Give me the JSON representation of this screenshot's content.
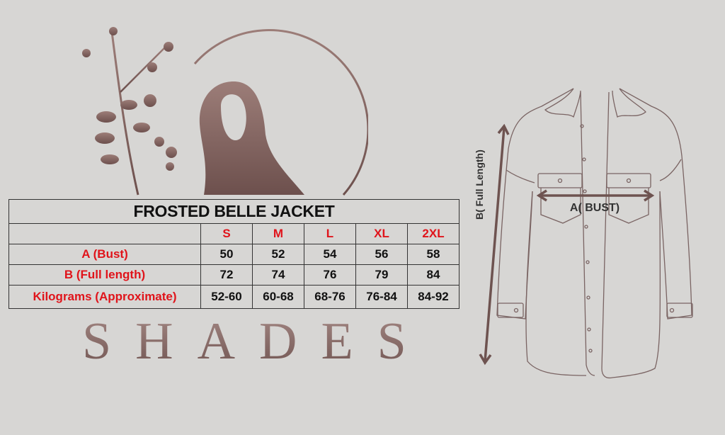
{
  "table": {
    "title": "FROSTED BELLE JACKET",
    "sizes": [
      "S",
      "M",
      "L",
      "XL",
      "2XL"
    ],
    "rows": [
      {
        "label": "A (Bust)",
        "values": [
          "50",
          "52",
          "54",
          "56",
          "58"
        ]
      },
      {
        "label": "B (Full length)",
        "values": [
          "72",
          "74",
          "76",
          "79",
          "84"
        ]
      },
      {
        "label": "Kilograms (Approximate)",
        "values": [
          "52-60",
          "60-68",
          "68-76",
          "76-84",
          "84-92"
        ]
      }
    ]
  },
  "brand": {
    "name": "SHADES",
    "logo_icon": "hijab-woman-with-branch-logo"
  },
  "diagram": {
    "bust_label": "A( BUST)",
    "length_label": "B( Full Length)",
    "icon": "jacket-outline"
  },
  "colors": {
    "background": "#d7d6d4",
    "label_red": "#e0141b",
    "brand_brown": "#8c6c68",
    "arrow": "#6e5350"
  }
}
